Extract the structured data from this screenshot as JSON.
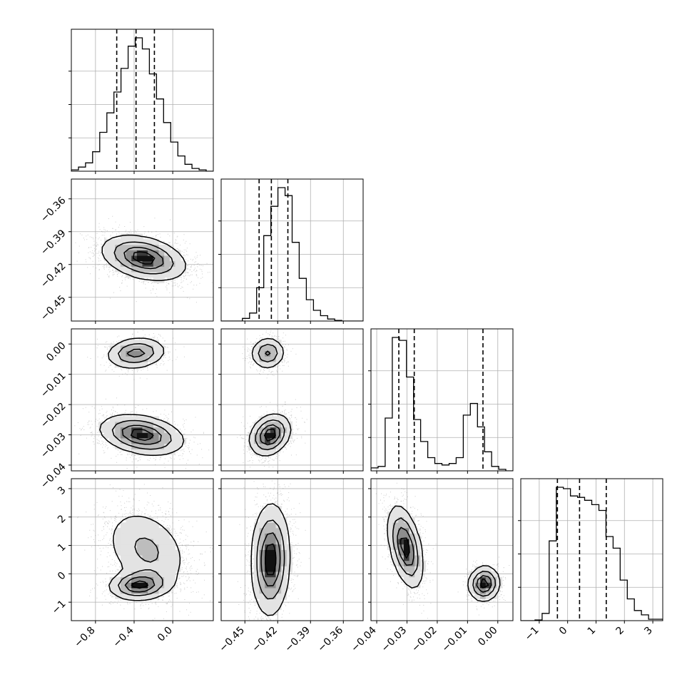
{
  "chart_data": {
    "type": "corner",
    "description_free": true,
    "params": [
      {
        "ticks": [
          -0.8,
          -0.4,
          0.0
        ],
        "tick_labels": [
          "−0.8",
          "−0.4",
          "0.0"
        ],
        "range": [
          -1.05,
          0.42
        ],
        "quantiles": [
          -0.58,
          -0.38,
          -0.19
        ]
      },
      {
        "ticks": [
          -0.45,
          -0.42,
          -0.39,
          -0.36
        ],
        "tick_labels": [
          "−0.45",
          "−0.42",
          "−0.39",
          "−0.36"
        ],
        "range": [
          -0.4717,
          -0.3419
        ],
        "quantiles": [
          -0.437,
          -0.4258,
          -0.4107
        ]
      },
      {
        "ticks": [
          -0.04,
          -0.03,
          -0.02,
          -0.01,
          0.0
        ],
        "tick_labels": [
          "−0.04",
          "−0.03",
          "−0.02",
          "−0.01",
          "0.00"
        ],
        "range": [
          -0.0419,
          0.005
        ],
        "quantiles": [
          -0.0327,
          -0.0276,
          -0.0049
        ]
      },
      {
        "ticks": [
          -1,
          0,
          1,
          2,
          3
        ],
        "tick_labels": [
          "−1",
          "0",
          "1",
          "2",
          "3"
        ],
        "range": [
          -1.65,
          3.35
        ],
        "quantiles": [
          -0.36,
          0.42,
          1.36
        ]
      }
    ],
    "histograms": [
      {
        "bins": 20,
        "counts": [
          0.01,
          0.03,
          0.06,
          0.14,
          0.28,
          0.42,
          0.57,
          0.74,
          0.9,
          0.96,
          0.88,
          0.7,
          0.52,
          0.35,
          0.21,
          0.11,
          0.05,
          0.02,
          0.01,
          0
        ]
      },
      {
        "bins": 20,
        "counts": [
          0,
          0,
          0,
          0.02,
          0.06,
          0.25,
          0.64,
          0.86,
          1.0,
          0.94,
          0.59,
          0.32,
          0.16,
          0.08,
          0.04,
          0.015,
          0.005,
          0,
          0,
          0
        ]
      },
      {
        "bins": 20,
        "counts": [
          0.02,
          0.03,
          0.36,
          0.91,
          0.89,
          0.64,
          0.35,
          0.2,
          0.09,
          0.05,
          0.04,
          0.05,
          0.09,
          0.38,
          0.46,
          0.3,
          0.13,
          0.03,
          0.01,
          0
        ]
      },
      {
        "bins": 20,
        "counts": [
          0,
          0,
          0.005,
          0.05,
          0.55,
          0.92,
          0.91,
          0.86,
          0.85,
          0.83,
          0.8,
          0.76,
          0.58,
          0.5,
          0.28,
          0.15,
          0.07,
          0.04,
          0.01,
          0.01
        ]
      }
    ],
    "pairs": {
      "1_0": [
        {
          "mx": -0.3,
          "my": -0.414,
          "sx": 0.21,
          "sy": 0.01,
          "rho": -0.35,
          "w": 1
        }
      ],
      "2_0": [
        {
          "mx": -0.38,
          "my": -0.003,
          "sx": 0.15,
          "sy": 0.0025,
          "rho": 0.15,
          "w": 0.3
        },
        {
          "mx": -0.32,
          "my": -0.03,
          "sx": 0.21,
          "sy": 0.0032,
          "rho": -0.3,
          "w": 0.7
        }
      ],
      "3_0": [
        {
          "mx": -0.27,
          "my": 0.85,
          "sx": 0.22,
          "sy": 0.75,
          "rho": -0.3,
          "w": 0.65
        },
        {
          "mx": -0.35,
          "my": -0.4,
          "sx": 0.15,
          "sy": 0.25,
          "rho": 0.1,
          "w": 0.35
        }
      ],
      "2_1": [
        {
          "mx": -0.429,
          "my": -0.003,
          "sx": 0.0075,
          "sy": 0.0025,
          "rho": 0.05,
          "w": 0.3
        },
        {
          "mx": -0.427,
          "my": -0.03,
          "sx": 0.009,
          "sy": 0.0033,
          "rho": 0.25,
          "w": 0.7
        }
      ],
      "3_1": [
        {
          "mx": -0.4265,
          "my": 0.5,
          "sx": 0.0085,
          "sy": 0.95,
          "rho": 0.05,
          "w": 1
        }
      ],
      "3_2": [
        {
          "mx": -0.0305,
          "my": 0.95,
          "sx": 0.0028,
          "sy": 0.7,
          "rho": -0.45,
          "w": 0.7
        },
        {
          "mx": -0.0045,
          "my": -0.35,
          "sx": 0.0025,
          "sy": 0.3,
          "rho": 0.05,
          "w": 0.3
        }
      ]
    }
  }
}
